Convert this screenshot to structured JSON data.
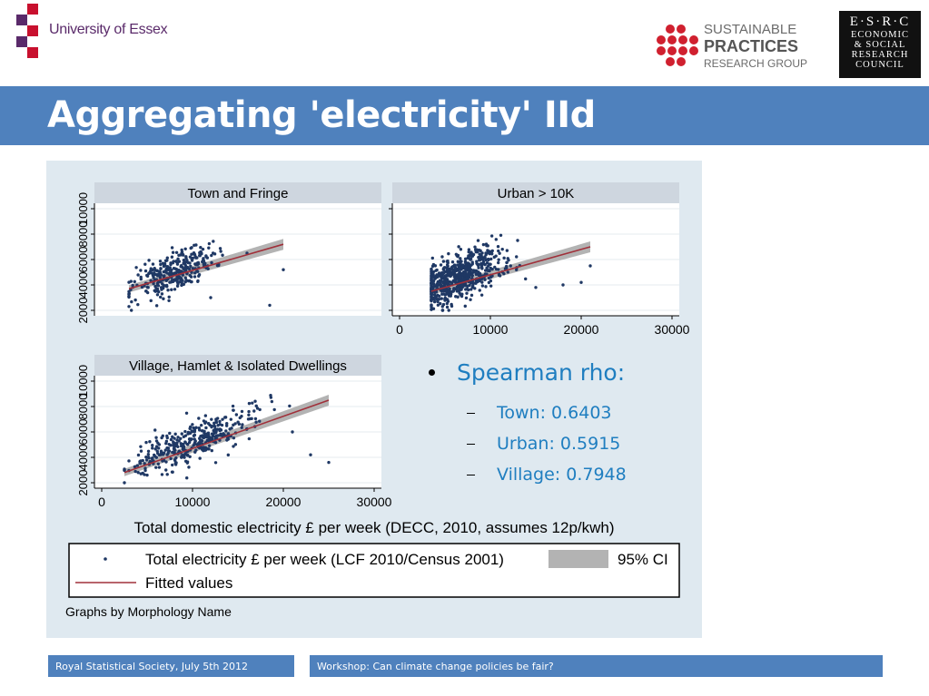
{
  "header": {
    "university": "University of Essex",
    "spr_line1": "SUSTAINABLE",
    "spr_line2": "PRACTICES",
    "spr_line3": "RESEARCH GROUP",
    "esrc_line1": "E·S·R·C",
    "esrc_line2": "ECONOMIC",
    "esrc_line3": "& SOCIAL",
    "esrc_line4": "RESEARCH",
    "esrc_line5": "COUNCIL"
  },
  "slide": {
    "title": "Aggregating 'electricity' IId"
  },
  "bullets": {
    "main": "Spearman rho:",
    "items": [
      "Town: 0.6403",
      "Urban:  0.5915",
      "Village:  0.7948"
    ]
  },
  "footer": {
    "left": "Royal Statistical Society, July 5th 2012",
    "right": "Workshop: Can climate change policies be fair?"
  },
  "colors": {
    "title_bar": "#4f81bd",
    "points": "#1f3864",
    "fit_line": "#a0303a",
    "ci_band": "#b3b3b3",
    "panel_header": "#ced6df",
    "bullet_text": "#1f7ec0"
  },
  "chart_data": {
    "type": "scatter",
    "xlabel": "Total domestic electricity £ per week (DECC, 2010, assumes 12p/kwh)",
    "xlim": [
      0,
      30000
    ],
    "xticks": [
      "0",
      "10000",
      "20000",
      "30000"
    ],
    "ylim": [
      2000,
      10000
    ],
    "yticks": [
      "2000",
      "4000",
      "6000",
      "8000",
      "10000"
    ],
    "legend": {
      "points_label": "Total electricity £ per week (LCF 2010/Census 2001)",
      "ci_label": "95% CI",
      "fit_label": "Fitted values"
    },
    "note": "Graphs by Morphology Name",
    "panels": [
      {
        "title": "Town and Fringe",
        "x_range": [
          3000,
          20000
        ],
        "fit": [
          [
            3000,
            3700
          ],
          [
            20000,
            7200
          ]
        ],
        "cloud": {
          "x_center": 8000,
          "x_sd": 2200,
          "y_center": 5000,
          "y_sd": 1000,
          "n": 320,
          "rho": 0.64
        },
        "outliers": [
          [
            20000,
            5200
          ],
          [
            18500,
            2400
          ],
          [
            3000,
            2300
          ],
          [
            16000,
            6500
          ],
          [
            12000,
            3000
          ]
        ]
      },
      {
        "title": "Urban > 10K",
        "x_range": [
          3500,
          21000
        ],
        "fit": [
          [
            3500,
            3500
          ],
          [
            21000,
            7000
          ]
        ],
        "cloud": {
          "x_center": 6500,
          "x_sd": 2300,
          "y_center": 4600,
          "y_sd": 1100,
          "n": 650,
          "rho": 0.59
        },
        "outliers": [
          [
            21000,
            5500
          ],
          [
            18000,
            4000
          ],
          [
            15000,
            3800
          ],
          [
            13000,
            7500
          ],
          [
            20000,
            4200
          ]
        ]
      },
      {
        "title": "Village, Hamlet & Isolated Dwellings",
        "x_range": [
          2500,
          25000
        ],
        "fit": [
          [
            2500,
            2800
          ],
          [
            25000,
            8500
          ]
        ],
        "cloud": {
          "x_center": 10000,
          "x_sd": 3600,
          "y_center": 5200,
          "y_sd": 1300,
          "n": 380,
          "rho": 0.79
        },
        "outliers": [
          [
            25000,
            3600
          ],
          [
            23000,
            4200
          ],
          [
            21000,
            6000
          ],
          [
            5000,
            2600
          ]
        ]
      }
    ]
  }
}
